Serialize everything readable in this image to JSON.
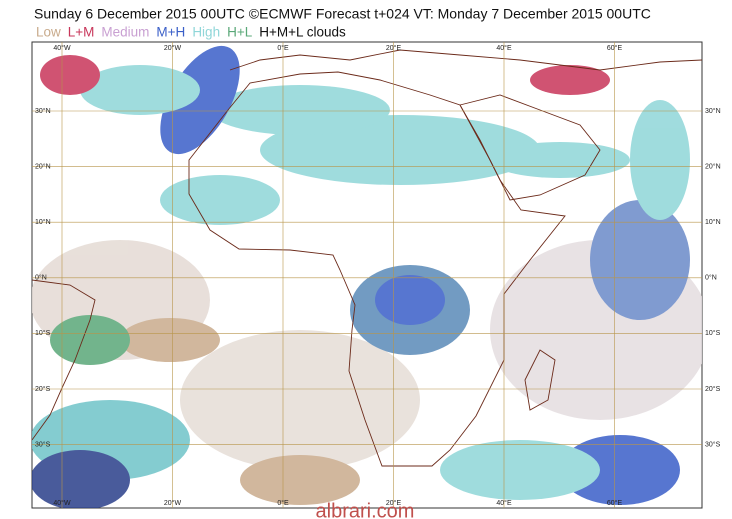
{
  "header": {
    "title": "Sunday 6 December 2015 00UTC ©ECMWF Forecast t+024 VT: Monday 7 December 2015 00UTC"
  },
  "legend": {
    "items": [
      {
        "label": "Low",
        "color": "#c9ab8c"
      },
      {
        "label": "L+M",
        "color": "#c8365a"
      },
      {
        "label": "Medium",
        "color": "#c9a0d2"
      },
      {
        "label": "M+H",
        "color": "#3a5fc8"
      },
      {
        "label": "High",
        "color": "#8fd6d8"
      },
      {
        "label": "H+L",
        "color": "#5aa878"
      },
      {
        "label": "H+M+L clouds",
        "color": "#111111"
      }
    ]
  },
  "map": {
    "lon_labels": [
      "40°W",
      "20°W",
      "0°E",
      "20°E",
      "40°E",
      "60°E"
    ],
    "lat_labels": [
      "30°N",
      "20°N",
      "10°N",
      "0°N",
      "10°S",
      "20°S",
      "30°S"
    ]
  },
  "watermark": "albrari.com"
}
